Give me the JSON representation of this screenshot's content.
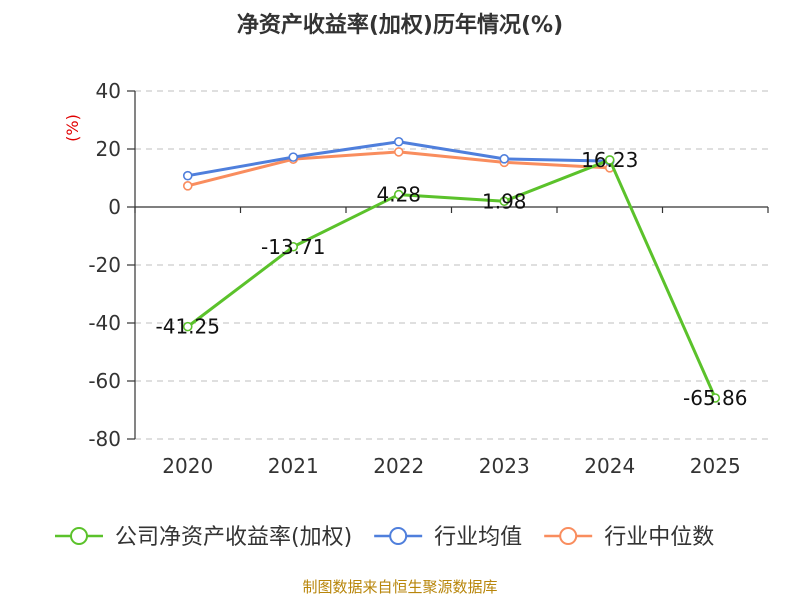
{
  "chart_data": {
    "type": "line",
    "title": "净资产收益率(加权)历年情况(%)",
    "ylabel": "(%)",
    "categories": [
      "2020",
      "2021",
      "2022",
      "2023",
      "2024",
      "2025"
    ],
    "ylim": [
      -80,
      40
    ],
    "yticks": [
      40,
      20,
      0,
      -20,
      -40,
      -60,
      -80
    ],
    "grid": true,
    "legend_position": "bottom",
    "series": [
      {
        "name": "公司净资产收益率(加权)",
        "color": "#5bc22b",
        "values": [
          -41.25,
          -13.71,
          4.28,
          1.98,
          16.23,
          -65.86
        ],
        "labels": [
          "-41.25",
          "-13.71",
          "4.28",
          "1.98",
          "16.23",
          "-65.86"
        ]
      },
      {
        "name": "行业均值",
        "color": "#4f7fdc",
        "values": [
          10.8,
          17.2,
          22.5,
          16.6,
          15.8,
          null
        ]
      },
      {
        "name": "行业中位数",
        "color": "#f98d5e",
        "values": [
          7.3,
          16.5,
          19.0,
          15.4,
          13.5,
          null
        ]
      }
    ]
  },
  "footer": {
    "source": "制图数据来自恒生聚源数据库"
  }
}
